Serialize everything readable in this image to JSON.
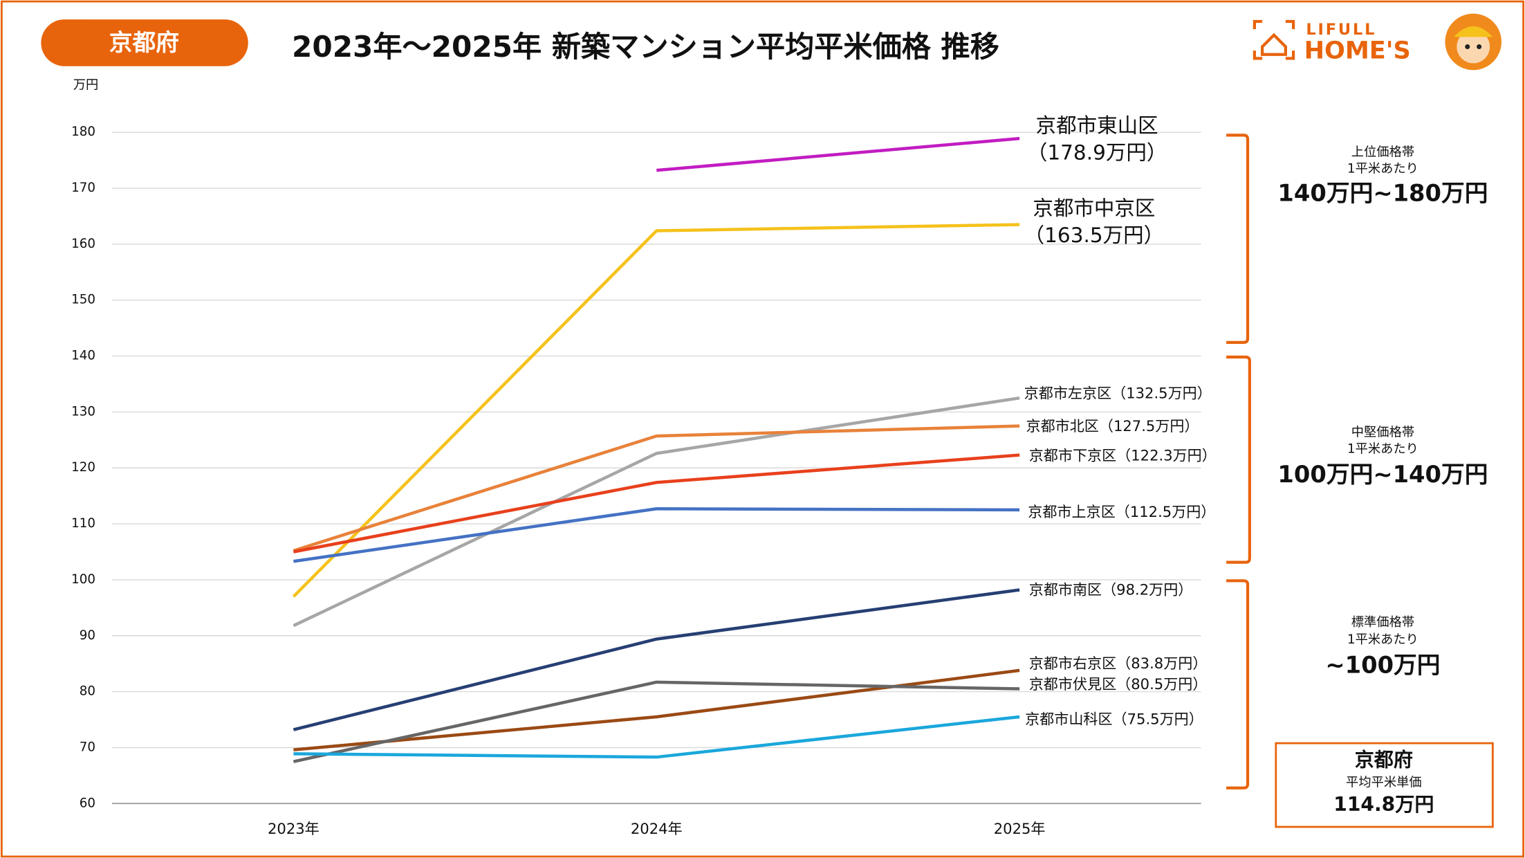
{
  "chart_data": {
    "type": "line",
    "badge": "京都府",
    "title": "2023年～2025年 新築マンション平均平米価格 推移",
    "y_unit": "万円",
    "logo": [
      "LIFULL",
      "HOME'S"
    ],
    "categories": [
      "2023年",
      "2024年",
      "2025年"
    ],
    "ylim": [
      60,
      180
    ],
    "yticks": [
      60,
      70,
      80,
      90,
      100,
      110,
      120,
      130,
      140,
      150,
      160,
      170,
      180
    ],
    "grid": true,
    "series": [
      {
        "name": "京都市東山区",
        "color": "#c21cc2",
        "values": [
          null,
          173.2,
          178.9
        ],
        "value_labels": [
          null,
          null,
          "（178.9万円）"
        ]
      },
      {
        "name": "京都市中京区",
        "color": "#f5c21b",
        "values": [
          97.0,
          162.4,
          163.5
        ],
        "value_labels": [
          null,
          null,
          "（163.5万円）"
        ]
      },
      {
        "name": "京都市左京区",
        "color": "#a6a6a6",
        "values": [
          91.8,
          122.6,
          132.5
        ],
        "value_labels": [
          null,
          null,
          "（132.5万円）"
        ]
      },
      {
        "name": "京都市北区",
        "color": "#e8823a",
        "values": [
          105.2,
          125.7,
          127.5
        ],
        "value_labels": [
          null,
          null,
          "（127.5万円）"
        ]
      },
      {
        "name": "京都市下京区",
        "color": "#e8401c",
        "values": [
          105.0,
          117.4,
          122.3
        ],
        "value_labels": [
          null,
          null,
          "（122.3万円）"
        ]
      },
      {
        "name": "京都市上京区",
        "color": "#4472c4",
        "values": [
          103.3,
          112.7,
          112.5
        ],
        "value_labels": [
          null,
          null,
          "（112.5万円）"
        ]
      },
      {
        "name": "京都市南区",
        "color": "#263f73",
        "values": [
          73.2,
          89.4,
          98.2
        ],
        "value_labels": [
          null,
          null,
          "（98.2万円）"
        ]
      },
      {
        "name": "京都市右京区",
        "color": "#9a4a14",
        "values": [
          69.6,
          75.5,
          83.8
        ],
        "value_labels": [
          null,
          null,
          "（83.8万円）"
        ]
      },
      {
        "name": "京都市伏見区",
        "color": "#666666",
        "values": [
          67.5,
          81.7,
          80.5
        ],
        "value_labels": [
          null,
          null,
          "（80.5万円）"
        ]
      },
      {
        "name": "京都市山科区",
        "color": "#1aa7dc",
        "values": [
          68.9,
          68.3,
          75.5
        ],
        "value_labels": [
          null,
          null,
          "（75.5万円）"
        ]
      }
    ],
    "price_bands": [
      {
        "name": "上位価格帯",
        "unit": "1平米あたり",
        "range": "140万円~180万円"
      },
      {
        "name": "中堅価格帯",
        "unit": "1平米あたり",
        "range": "100万円~140万円"
      },
      {
        "name": "標準価格帯",
        "unit": "1平米あたり",
        "range": "~100万円"
      }
    ],
    "summary": {
      "region": "京都府",
      "label": "平均平米単価",
      "value": "114.8万円"
    }
  }
}
